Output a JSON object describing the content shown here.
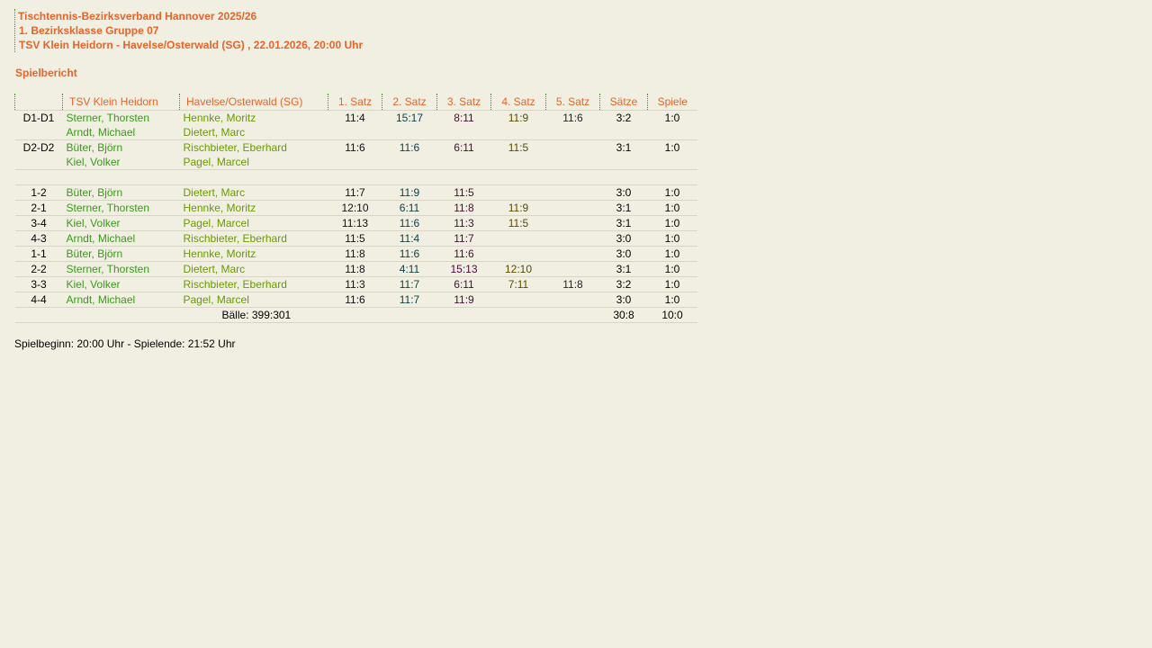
{
  "header": {
    "line1": "Tischtennis-Bezirksverband Hannover 2025/26",
    "line2": "1. Bezirksklasse Gruppe 07",
    "line3": "TSV Klein Heidorn - Havelse/Osterwald (SG) , 22.01.2026, 20:00 Uhr"
  },
  "title": "Spielbericht",
  "columns": [
    "",
    "TSV Klein Heidorn",
    "Havelse/Osterwald (SG)",
    "1. Satz",
    "2. Satz",
    "3. Satz",
    "4. Satz",
    "5. Satz",
    "Sätze",
    "Spiele"
  ],
  "doubles": [
    {
      "pair": "D1-D1",
      "home": [
        "Sterner, Thorsten",
        "Arndt, Michael"
      ],
      "guest": [
        "Hennke, Moritz",
        "Dietert, Marc"
      ],
      "sets": [
        "11:4",
        "15:17",
        "8:11",
        "11:9",
        "11:6"
      ],
      "saetze": "3:2",
      "spiele": "1:0"
    },
    {
      "pair": "D2-D2",
      "home": [
        "Büter, Björn",
        "Kiel, Volker"
      ],
      "guest": [
        "Rischbieter, Eberhard",
        "Pagel, Marcel"
      ],
      "sets": [
        "11:6",
        "11:6",
        "6:11",
        "11:5",
        ""
      ],
      "saetze": "3:1",
      "spiele": "1:0"
    }
  ],
  "singles": [
    {
      "pair": "1-2",
      "home": "Büter, Björn",
      "guest": "Dietert, Marc",
      "sets": [
        "11:7",
        "11:9",
        "11:5",
        "",
        ""
      ],
      "saetze": "3:0",
      "spiele": "1:0"
    },
    {
      "pair": "2-1",
      "home": "Sterner, Thorsten",
      "guest": "Hennke, Moritz",
      "sets": [
        "12:10",
        "6:11",
        "11:8",
        "11:9",
        ""
      ],
      "saetze": "3:1",
      "spiele": "1:0"
    },
    {
      "pair": "3-4",
      "home": "Kiel, Volker",
      "guest": "Pagel, Marcel",
      "sets": [
        "11:13",
        "11:6",
        "11:3",
        "11:5",
        ""
      ],
      "saetze": "3:1",
      "spiele": "1:0"
    },
    {
      "pair": "4-3",
      "home": "Arndt, Michael",
      "guest": "Rischbieter, Eberhard",
      "sets": [
        "11:5",
        "11:4",
        "11:7",
        "",
        ""
      ],
      "saetze": "3:0",
      "spiele": "1:0"
    },
    {
      "pair": "1-1",
      "home": "Büter, Björn",
      "guest": "Hennke, Moritz",
      "sets": [
        "11:8",
        "11:6",
        "11:6",
        "",
        ""
      ],
      "saetze": "3:0",
      "spiele": "1:0"
    },
    {
      "pair": "2-2",
      "home": "Sterner, Thorsten",
      "guest": "Dietert, Marc",
      "sets": [
        "11:8",
        "4:11",
        "15:13",
        "12:10",
        ""
      ],
      "saetze": "3:1",
      "spiele": "1:0"
    },
    {
      "pair": "3-3",
      "home": "Kiel, Volker",
      "guest": "Rischbieter, Eberhard",
      "sets": [
        "11:3",
        "11:7",
        "6:11",
        "7:11",
        "11:8"
      ],
      "saetze": "3:2",
      "spiele": "1:0"
    },
    {
      "pair": "4-4",
      "home": "Arndt, Michael",
      "guest": "Pagel, Marcel",
      "sets": [
        "11:6",
        "11:7",
        "11:9",
        "",
        ""
      ],
      "saetze": "3:0",
      "spiele": "1:0"
    }
  ],
  "total": {
    "balls": "Bälle: 399:301",
    "saetze": "30:8",
    "spiele": "10:0"
  },
  "footer": "Spielbeginn: 20:00 Uhr - Spielende: 21:52 Uhr",
  "colors": {
    "accent": "#e8642a",
    "home": "#3a9a1a",
    "guest": "#6a9a00",
    "background": "#f0efe2"
  }
}
